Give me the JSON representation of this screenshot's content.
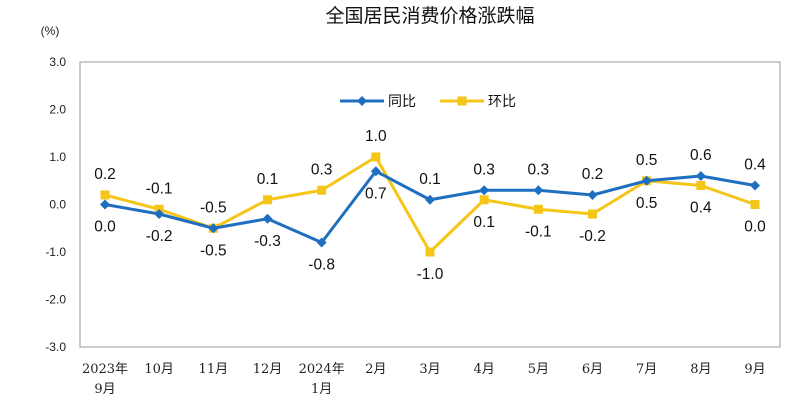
{
  "chart_data": {
    "type": "line",
    "title": "全国居民消费价格涨跌幅",
    "unit": "(%)",
    "ylim": [
      -3.0,
      3.0
    ],
    "yticks": [
      "3.0",
      "2.0",
      "1.0",
      "0.0",
      "-1.0",
      "-2.0",
      "-3.0"
    ],
    "categories": [
      [
        "2023年",
        "9月"
      ],
      [
        "10月"
      ],
      [
        "11月"
      ],
      [
        "12月"
      ],
      [
        "2024年",
        "1月"
      ],
      [
        "2月"
      ],
      [
        "3月"
      ],
      [
        "4月"
      ],
      [
        "5月"
      ],
      [
        "6月"
      ],
      [
        "7月"
      ],
      [
        "8月"
      ],
      [
        "9月"
      ]
    ],
    "legend_position": "top-center",
    "series": [
      {
        "name": "同比",
        "color": "#1f6fc1",
        "marker": "diamond",
        "values": [
          0.0,
          -0.2,
          -0.5,
          -0.3,
          -0.8,
          0.7,
          0.1,
          0.3,
          0.3,
          0.2,
          0.5,
          0.6,
          0.4
        ],
        "labels": [
          "0.0",
          "-0.2",
          "-0.5",
          "-0.3",
          "-0.8",
          "0.7",
          "0.1",
          "0.3",
          "0.3",
          "0.2",
          "0.5",
          "0.6",
          "0.4"
        ]
      },
      {
        "name": "环比",
        "color": "#f5c518",
        "marker": "square",
        "values": [
          0.2,
          -0.1,
          -0.5,
          0.1,
          0.3,
          1.0,
          -1.0,
          0.1,
          -0.1,
          -0.2,
          0.5,
          0.4,
          0.0
        ],
        "labels": [
          "0.2",
          "-0.1",
          "-0.5",
          "0.1",
          "0.3",
          "1.0",
          "-1.0",
          "0.1",
          "-0.1",
          "-0.2",
          "0.5",
          "0.4",
          "0.0"
        ]
      }
    ]
  }
}
